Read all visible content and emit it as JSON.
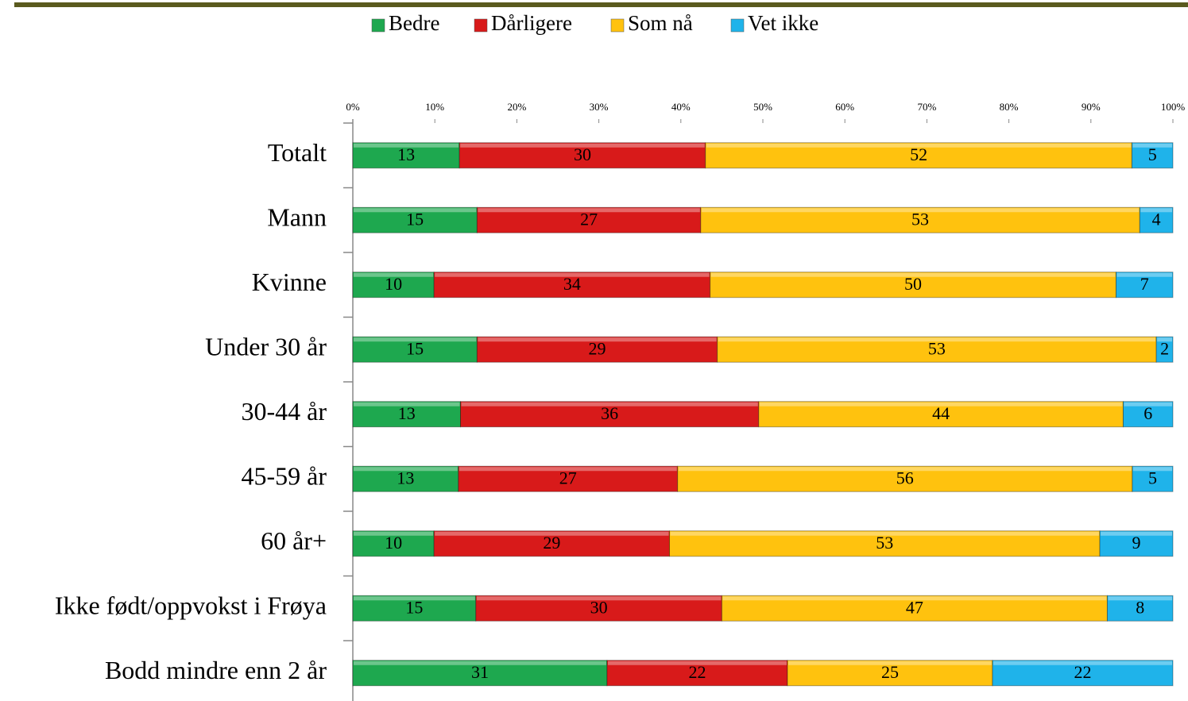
{
  "chart_data": {
    "type": "bar",
    "orientation": "horizontal",
    "stacking": "percent",
    "categories": [
      "Totalt",
      "Mann",
      "Kvinne",
      "Under 30 år",
      "30-44 år",
      "45-59 år",
      "60 år+",
      "Ikke født/oppvokst i Frøya",
      "Bodd mindre enn 2 år"
    ],
    "series": [
      {
        "name": "Bedre",
        "color": "#1ea84f",
        "values": [
          13,
          15,
          10,
          15,
          13,
          13,
          10,
          15,
          31
        ]
      },
      {
        "name": "Dårligere",
        "color": "#d81a1a",
        "values": [
          30,
          27,
          34,
          29,
          36,
          27,
          29,
          30,
          22
        ]
      },
      {
        "name": "Som nå",
        "color": "#ffc20e",
        "values": [
          52,
          53,
          50,
          53,
          44,
          56,
          53,
          47,
          25
        ]
      },
      {
        "name": "Vet ikke",
        "color": "#1fb3ea",
        "values": [
          5,
          4,
          7,
          2,
          6,
          5,
          9,
          8,
          22
        ]
      }
    ],
    "xlim": [
      0,
      100
    ],
    "xticks": [
      {
        "value": 0,
        "label": "0%"
      },
      {
        "value": 10,
        "label": "10%"
      },
      {
        "value": 20,
        "label": "20%"
      },
      {
        "value": 30,
        "label": "30%"
      },
      {
        "value": 40,
        "label": "40%"
      },
      {
        "value": 50,
        "label": "50%"
      },
      {
        "value": 60,
        "label": "60%"
      },
      {
        "value": 70,
        "label": "70%"
      },
      {
        "value": 80,
        "label": "80%"
      },
      {
        "value": 90,
        "label": "90%"
      },
      {
        "value": 100,
        "label": "100%"
      }
    ],
    "legend": "top"
  }
}
